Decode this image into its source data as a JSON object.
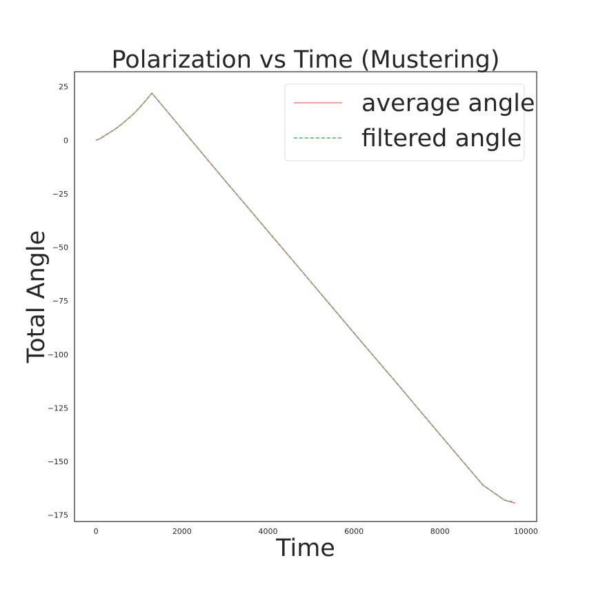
{
  "chart_data": {
    "type": "line",
    "title": "Polarization vs Time (Mustering)",
    "xlabel": "Time",
    "ylabel": "Total Angle",
    "xlim": [
      -500,
      10250
    ],
    "ylim": [
      -178,
      32
    ],
    "xticks": [
      0,
      2000,
      4000,
      6000,
      8000,
      10000
    ],
    "yticks": [
      25,
      0,
      -25,
      -50,
      -75,
      -100,
      -125,
      -150,
      -175
    ],
    "xtick_labels": [
      "0",
      "2000",
      "4000",
      "6000",
      "8000",
      "10000"
    ],
    "ytick_labels": [
      "25",
      "0",
      "−25",
      "−50",
      "−75",
      "−100",
      "−125",
      "−150",
      "−175"
    ],
    "grid": false,
    "legend_position": "upper-right",
    "series": [
      {
        "name": "average angle",
        "style": "solid",
        "color": "#f08080",
        "x": [
          0,
          100,
          200,
          300,
          400,
          500,
          600,
          700,
          800,
          900,
          1000,
          1100,
          1200,
          1300,
          1500,
          2000,
          2500,
          3000,
          3500,
          4000,
          4500,
          5000,
          5500,
          6000,
          6500,
          7000,
          7500,
          8000,
          8500,
          9000,
          9500,
          9750
        ],
        "y": [
          0,
          0.8,
          2.1,
          3.4,
          4.6,
          6.0,
          7.6,
          9.3,
          11.0,
          12.8,
          15.0,
          17.2,
          19.6,
          22.0,
          17.2,
          5.2,
          -6.8,
          -18.8,
          -30.6,
          -42.5,
          -54.3,
          -66.2,
          -78.1,
          -90.0,
          -101.8,
          -113.5,
          -125.5,
          -137.4,
          -149.2,
          -161.0,
          -168.0,
          -169.5
        ]
      },
      {
        "name": "filtered angle",
        "style": "dashed",
        "color": "#55a868",
        "x": [
          0,
          100,
          200,
          300,
          400,
          500,
          600,
          700,
          800,
          900,
          1000,
          1100,
          1200,
          1300,
          1500,
          2000,
          2500,
          3000,
          3500,
          4000,
          4500,
          5000,
          5500,
          6000,
          6500,
          7000,
          7500,
          8000,
          8500,
          9000,
          9500,
          9750
        ],
        "y": [
          0,
          0.8,
          2.1,
          3.4,
          4.6,
          6.0,
          7.6,
          9.3,
          11.0,
          12.8,
          15.0,
          17.2,
          19.6,
          22.0,
          17.2,
          5.2,
          -6.8,
          -18.8,
          -30.6,
          -42.5,
          -54.3,
          -66.2,
          -78.1,
          -90.0,
          -101.8,
          -113.5,
          -125.5,
          -137.4,
          -149.2,
          -161.0,
          -168.0,
          -169.0
        ]
      }
    ]
  }
}
